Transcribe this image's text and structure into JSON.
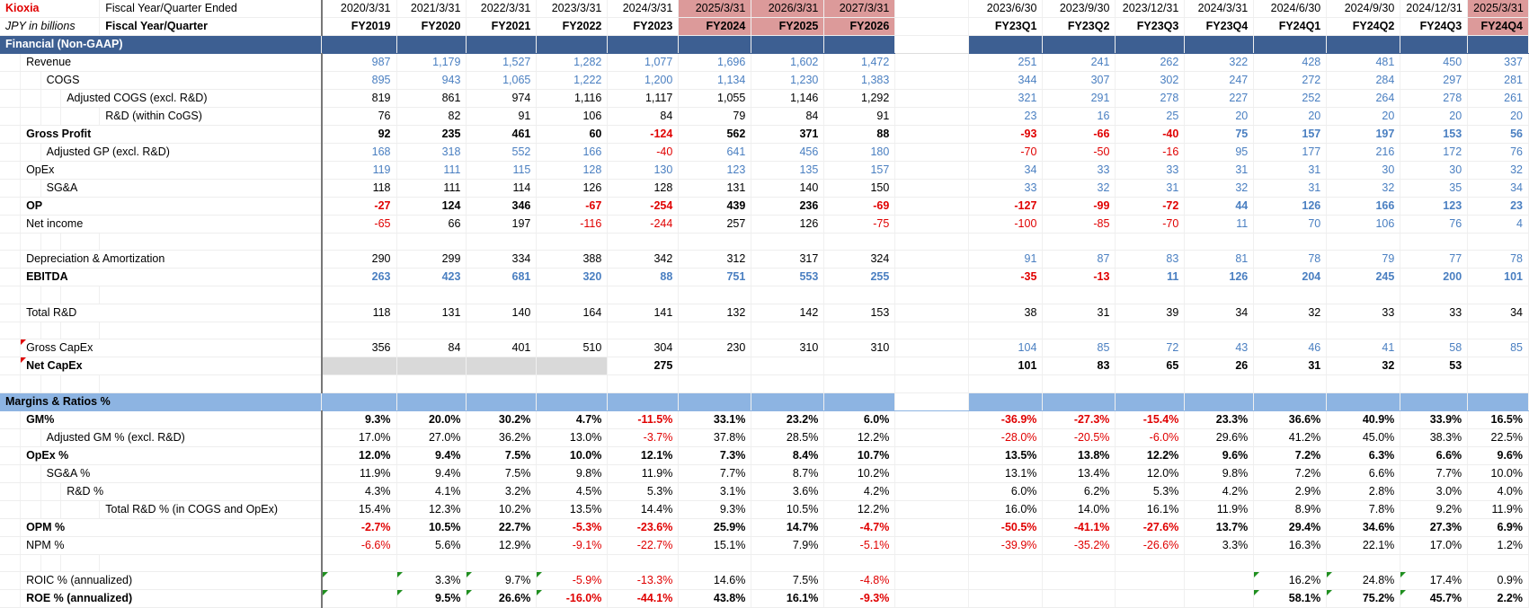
{
  "header": {
    "company": "Kioxia",
    "unit": "JPY in billions",
    "row1_label": "Fiscal Year/Quarter Ended",
    "row2_label": "Fiscal Year/Quarter",
    "annual_dates": [
      "2020/3/31",
      "2021/3/31",
      "2022/3/31",
      "2023/3/31",
      "2024/3/31",
      "2025/3/31",
      "2026/3/31",
      "2027/3/31"
    ],
    "annual_labels": [
      "FY2019",
      "FY2020",
      "FY2021",
      "FY2022",
      "FY2023",
      "FY2024",
      "FY2025",
      "FY2026"
    ],
    "quarter_dates": [
      "2023/6/30",
      "2023/9/30",
      "2023/12/31",
      "2024/3/31",
      "2024/6/30",
      "2024/9/30",
      "2024/12/31",
      "2025/3/31"
    ],
    "quarter_labels": [
      "FY23Q1",
      "FY23Q2",
      "FY23Q3",
      "FY23Q4",
      "FY24Q1",
      "FY24Q2",
      "FY24Q3",
      "FY24Q4"
    ]
  },
  "colors": {
    "section_dark": "#3d5f92",
    "section_light": "#8db4e2",
    "forecast": "#dc9a9a",
    "blue": "#4a7fc1",
    "red": "#e00000"
  },
  "sections": {
    "financial": "Financial (Non-GAAP)",
    "margins": "Margins & Ratios %"
  },
  "rows": [
    {
      "key": "revenue",
      "label": "Revenue",
      "indent": 1,
      "lbold": false,
      "a": [
        "987",
        "1,179",
        "1,527",
        "1,282",
        "1,077",
        "1,696",
        "1,602",
        "1,472"
      ],
      "ac": [
        "blue",
        "blue",
        "blue",
        "blue",
        "blue",
        "blue",
        "blue",
        "blue"
      ],
      "q": [
        "251",
        "241",
        "262",
        "322",
        "428",
        "481",
        "450",
        "337"
      ],
      "qc": [
        "blue",
        "blue",
        "blue",
        "blue",
        "blue",
        "blue",
        "blue",
        "blue"
      ]
    },
    {
      "key": "cogs",
      "label": "COGS",
      "indent": 2,
      "lbold": false,
      "a": [
        "895",
        "943",
        "1,065",
        "1,222",
        "1,200",
        "1,134",
        "1,230",
        "1,383"
      ],
      "ac": [
        "blue",
        "blue",
        "blue",
        "blue",
        "blue",
        "blue",
        "blue",
        "blue"
      ],
      "q": [
        "344",
        "307",
        "302",
        "247",
        "272",
        "284",
        "297",
        "281"
      ],
      "qc": [
        "blue",
        "blue",
        "blue",
        "blue",
        "blue",
        "blue",
        "blue",
        "blue"
      ]
    },
    {
      "key": "adj-cogs",
      "label": "Adjusted COGS (excl. R&D)",
      "indent": 3,
      "lbold": false,
      "a": [
        "819",
        "861",
        "974",
        "1,116",
        "1,117",
        "1,055",
        "1,146",
        "1,292"
      ],
      "ac": [
        "",
        "",
        "",
        "",
        "",
        "",
        "",
        ""
      ],
      "q": [
        "321",
        "291",
        "278",
        "227",
        "252",
        "264",
        "278",
        "261"
      ],
      "qc": [
        "blue",
        "blue",
        "blue",
        "blue",
        "blue",
        "blue",
        "blue",
        "blue"
      ]
    },
    {
      "key": "rnd-cogs",
      "label": "R&D (within CoGS)",
      "indent": 4,
      "lbold": false,
      "a": [
        "76",
        "82",
        "91",
        "106",
        "84",
        "79",
        "84",
        "91"
      ],
      "ac": [
        "",
        "",
        "",
        "",
        "",
        "",
        "",
        ""
      ],
      "q": [
        "23",
        "16",
        "25",
        "20",
        "20",
        "20",
        "20",
        "20"
      ],
      "qc": [
        "blue",
        "blue",
        "blue",
        "blue",
        "blue",
        "blue",
        "blue",
        "blue"
      ]
    },
    {
      "key": "gross-profit",
      "label": "Gross Profit",
      "indent": 1,
      "lbold": true,
      "a": [
        "92",
        "235",
        "461",
        "60",
        "-124",
        "562",
        "371",
        "88"
      ],
      "ac": [
        "bold",
        "bold",
        "bold",
        "bold",
        "bred",
        "bold",
        "bold",
        "bold"
      ],
      "q": [
        "-93",
        "-66",
        "-40",
        "75",
        "157",
        "197",
        "153",
        "56"
      ],
      "qc": [
        "bred",
        "bred",
        "bred",
        "bblue",
        "bblue",
        "bblue",
        "bblue",
        "bblue"
      ]
    },
    {
      "key": "adj-gp",
      "label": "Adjusted GP (excl. R&D)",
      "indent": 2,
      "lbold": false,
      "a": [
        "168",
        "318",
        "552",
        "166",
        "-40",
        "641",
        "456",
        "180"
      ],
      "ac": [
        "blue",
        "blue",
        "blue",
        "blue",
        "red",
        "blue",
        "blue",
        "blue"
      ],
      "q": [
        "-70",
        "-50",
        "-16",
        "95",
        "177",
        "216",
        "172",
        "76"
      ],
      "qc": [
        "red",
        "red",
        "red",
        "blue",
        "blue",
        "blue",
        "blue",
        "blue"
      ]
    },
    {
      "key": "opex",
      "label": "OpEx",
      "indent": 1,
      "lbold": false,
      "a": [
        "119",
        "111",
        "115",
        "128",
        "130",
        "123",
        "135",
        "157"
      ],
      "ac": [
        "blue",
        "blue",
        "blue",
        "blue",
        "blue",
        "blue",
        "blue",
        "blue"
      ],
      "q": [
        "34",
        "33",
        "33",
        "31",
        "31",
        "30",
        "30",
        "32"
      ],
      "qc": [
        "blue",
        "blue",
        "blue",
        "blue",
        "blue",
        "blue",
        "blue",
        "blue"
      ]
    },
    {
      "key": "sga",
      "label": "SG&A",
      "indent": 2,
      "lbold": false,
      "a": [
        "118",
        "111",
        "114",
        "126",
        "128",
        "131",
        "140",
        "150"
      ],
      "ac": [
        "",
        "",
        "",
        "",
        "",
        "",
        "",
        ""
      ],
      "q": [
        "33",
        "32",
        "31",
        "32",
        "31",
        "32",
        "35",
        "34"
      ],
      "qc": [
        "blue",
        "blue",
        "blue",
        "blue",
        "blue",
        "blue",
        "blue",
        "blue"
      ]
    },
    {
      "key": "op",
      "label": "OP",
      "indent": 1,
      "lbold": true,
      "a": [
        "-27",
        "124",
        "346",
        "-67",
        "-254",
        "439",
        "236",
        "-69"
      ],
      "ac": [
        "bred",
        "bold",
        "bold",
        "bred",
        "bred",
        "bold",
        "bold",
        "bred"
      ],
      "q": [
        "-127",
        "-99",
        "-72",
        "44",
        "126",
        "166",
        "123",
        "23"
      ],
      "qc": [
        "bred",
        "bred",
        "bred",
        "bblue",
        "bblue",
        "bblue",
        "bblue",
        "bblue"
      ]
    },
    {
      "key": "net-income",
      "label": "Net income",
      "indent": 1,
      "lbold": false,
      "a": [
        "-65",
        "66",
        "197",
        "-116",
        "-244",
        "257",
        "126",
        "-75"
      ],
      "ac": [
        "red",
        "",
        "",
        "red",
        "red",
        "",
        "",
        "red"
      ],
      "q": [
        "-100",
        "-85",
        "-70",
        "11",
        "70",
        "106",
        "76",
        "4"
      ],
      "qc": [
        "red",
        "red",
        "red",
        "blue",
        "blue",
        "blue",
        "blue",
        "blue"
      ]
    },
    {
      "key": "blank1",
      "blank": true
    },
    {
      "key": "dna",
      "label": "Depreciation & Amortization",
      "indent": 1,
      "lbold": false,
      "a": [
        "290",
        "299",
        "334",
        "388",
        "342",
        "312",
        "317",
        "324"
      ],
      "ac": [
        "",
        "",
        "",
        "",
        "",
        "",
        "",
        ""
      ],
      "q": [
        "91",
        "87",
        "83",
        "81",
        "78",
        "79",
        "77",
        "78"
      ],
      "qc": [
        "blue",
        "blue",
        "blue",
        "blue",
        "blue",
        "blue",
        "blue",
        "blue"
      ]
    },
    {
      "key": "ebitda",
      "label": "EBITDA",
      "indent": 1,
      "lbold": true,
      "a": [
        "263",
        "423",
        "681",
        "320",
        "88",
        "751",
        "553",
        "255"
      ],
      "ac": [
        "bblue",
        "bblue",
        "bblue",
        "bblue",
        "bblue",
        "bblue",
        "bblue",
        "bblue"
      ],
      "q": [
        "-35",
        "-13",
        "11",
        "126",
        "204",
        "245",
        "200",
        "101"
      ],
      "qc": [
        "bred",
        "bred",
        "bblue",
        "bblue",
        "bblue",
        "bblue",
        "bblue",
        "bblue"
      ]
    },
    {
      "key": "blank2",
      "blank": true
    },
    {
      "key": "total-rnd",
      "label": "Total R&D",
      "indent": 1,
      "lbold": false,
      "a": [
        "118",
        "131",
        "140",
        "164",
        "141",
        "132",
        "142",
        "153"
      ],
      "ac": [
        "",
        "",
        "",
        "",
        "",
        "",
        "",
        ""
      ],
      "q": [
        "38",
        "31",
        "39",
        "34",
        "32",
        "33",
        "33",
        "34"
      ],
      "qc": [
        "",
        "",
        "",
        "",
        "",
        "",
        "",
        ""
      ]
    },
    {
      "key": "blank3",
      "blank": true
    },
    {
      "key": "gross-capex",
      "label": "Gross CapEx",
      "indent": 1,
      "lbold": false,
      "ltri": true,
      "a": [
        "356",
        "84",
        "401",
        "510",
        "304",
        "230",
        "310",
        "310"
      ],
      "ac": [
        "",
        "",
        "",
        "",
        "",
        "",
        "",
        ""
      ],
      "q": [
        "104",
        "85",
        "72",
        "43",
        "46",
        "41",
        "58",
        "85"
      ],
      "qc": [
        "blue",
        "blue",
        "blue",
        "blue",
        "blue",
        "blue",
        "blue",
        "blue"
      ]
    },
    {
      "key": "net-capex",
      "label": "Net CapEx",
      "indent": 1,
      "lbold": true,
      "ltri": true,
      "grayA": [
        0,
        1,
        2,
        3
      ],
      "a": [
        "",
        "",
        "",
        "",
        "275",
        "",
        "",
        ""
      ],
      "ac": [
        "",
        "",
        "",
        "",
        "bold",
        "",
        "",
        ""
      ],
      "q": [
        "101",
        "83",
        "65",
        "26",
        "31",
        "32",
        "53",
        ""
      ],
      "qc": [
        "bold",
        "bold",
        "bold",
        "bold",
        "bold",
        "bold",
        "bold",
        ""
      ]
    },
    {
      "key": "blank4",
      "blank": true
    },
    {
      "key": "section-margins",
      "section2": true
    },
    {
      "key": "gm",
      "label": "GM%",
      "indent": 1,
      "lbold": true,
      "a": [
        "9.3%",
        "20.0%",
        "30.2%",
        "4.7%",
        "-11.5%",
        "33.1%",
        "23.2%",
        "6.0%"
      ],
      "ac": [
        "bold",
        "bold",
        "bold",
        "bold",
        "bred",
        "bold",
        "bold",
        "bold"
      ],
      "q": [
        "-36.9%",
        "-27.3%",
        "-15.4%",
        "23.3%",
        "36.6%",
        "40.9%",
        "33.9%",
        "16.5%"
      ],
      "qc": [
        "bred",
        "bred",
        "bred",
        "bold",
        "bold",
        "bold",
        "bold",
        "bold"
      ]
    },
    {
      "key": "adj-gm",
      "label": "Adjusted GM % (excl. R&D)",
      "indent": 2,
      "lbold": false,
      "a": [
        "17.0%",
        "27.0%",
        "36.2%",
        "13.0%",
        "-3.7%",
        "37.8%",
        "28.5%",
        "12.2%"
      ],
      "ac": [
        "",
        "",
        "",
        "",
        "red",
        "",
        "",
        ""
      ],
      "q": [
        "-28.0%",
        "-20.5%",
        "-6.0%",
        "29.6%",
        "41.2%",
        "45.0%",
        "38.3%",
        "22.5%"
      ],
      "qc": [
        "red",
        "red",
        "red",
        "",
        "",
        "",
        "",
        ""
      ]
    },
    {
      "key": "opex-pct",
      "label": "OpEx %",
      "indent": 1,
      "lbold": true,
      "a": [
        "12.0%",
        "9.4%",
        "7.5%",
        "10.0%",
        "12.1%",
        "7.3%",
        "8.4%",
        "10.7%"
      ],
      "ac": [
        "bold",
        "bold",
        "bold",
        "bold",
        "bold",
        "bold",
        "bold",
        "bold"
      ],
      "q": [
        "13.5%",
        "13.8%",
        "12.2%",
        "9.6%",
        "7.2%",
        "6.3%",
        "6.6%",
        "9.6%"
      ],
      "qc": [
        "bold",
        "bold",
        "bold",
        "bold",
        "bold",
        "bold",
        "bold",
        "bold"
      ]
    },
    {
      "key": "sga-pct",
      "label": "SG&A %",
      "indent": 2,
      "lbold": false,
      "a": [
        "11.9%",
        "9.4%",
        "7.5%",
        "9.8%",
        "11.9%",
        "7.7%",
        "8.7%",
        "10.2%"
      ],
      "ac": [
        "",
        "",
        "",
        "",
        "",
        "",
        "",
        ""
      ],
      "q": [
        "13.1%",
        "13.4%",
        "12.0%",
        "9.8%",
        "7.2%",
        "6.6%",
        "7.7%",
        "10.0%"
      ],
      "qc": [
        "",
        "",
        "",
        "",
        "",
        "",
        "",
        ""
      ]
    },
    {
      "key": "rnd-pct",
      "label": "R&D %",
      "indent": 3,
      "lbold": false,
      "a": [
        "4.3%",
        "4.1%",
        "3.2%",
        "4.5%",
        "5.3%",
        "3.1%",
        "3.6%",
        "4.2%"
      ],
      "ac": [
        "",
        "",
        "",
        "",
        "",
        "",
        "",
        ""
      ],
      "q": [
        "6.0%",
        "6.2%",
        "5.3%",
        "4.2%",
        "2.9%",
        "2.8%",
        "3.0%",
        "4.0%"
      ],
      "qc": [
        "",
        "",
        "",
        "",
        "",
        "",
        "",
        ""
      ]
    },
    {
      "key": "total-rnd-pct",
      "label": "Total R&D % (in COGS and OpEx)",
      "indent": 4,
      "lbold": false,
      "a": [
        "15.4%",
        "12.3%",
        "10.2%",
        "13.5%",
        "14.4%",
        "9.3%",
        "10.5%",
        "12.2%"
      ],
      "ac": [
        "",
        "",
        "",
        "",
        "",
        "",
        "",
        ""
      ],
      "q": [
        "16.0%",
        "14.0%",
        "16.1%",
        "11.9%",
        "8.9%",
        "7.8%",
        "9.2%",
        "11.9%"
      ],
      "qc": [
        "",
        "",
        "",
        "",
        "",
        "",
        "",
        ""
      ]
    },
    {
      "key": "opm",
      "label": "OPM %",
      "indent": 1,
      "lbold": true,
      "a": [
        "-2.7%",
        "10.5%",
        "22.7%",
        "-5.3%",
        "-23.6%",
        "25.9%",
        "14.7%",
        "-4.7%"
      ],
      "ac": [
        "bred",
        "bold",
        "bold",
        "bred",
        "bred",
        "bold",
        "bold",
        "bred"
      ],
      "q": [
        "-50.5%",
        "-41.1%",
        "-27.6%",
        "13.7%",
        "29.4%",
        "34.6%",
        "27.3%",
        "6.9%"
      ],
      "qc": [
        "bred",
        "bred",
        "bred",
        "bold",
        "bold",
        "bold",
        "bold",
        "bold"
      ]
    },
    {
      "key": "npm",
      "label": "NPM %",
      "indent": 1,
      "lbold": false,
      "a": [
        "-6.6%",
        "5.6%",
        "12.9%",
        "-9.1%",
        "-22.7%",
        "15.1%",
        "7.9%",
        "-5.1%"
      ],
      "ac": [
        "red",
        "",
        "",
        "red",
        "red",
        "",
        "",
        "red"
      ],
      "q": [
        "-39.9%",
        "-35.2%",
        "-26.6%",
        "3.3%",
        "16.3%",
        "22.1%",
        "17.0%",
        "1.2%"
      ],
      "qc": [
        "red",
        "red",
        "red",
        "",
        "",
        "",
        "",
        ""
      ]
    },
    {
      "key": "blank5",
      "blank": true
    },
    {
      "key": "roic",
      "label": "ROIC % (annualized)",
      "indent": 1,
      "lbold": false,
      "triA": [
        0,
        1,
        2,
        3
      ],
      "triQ": [
        4,
        5,
        6
      ],
      "a": [
        "",
        "3.3%",
        "9.7%",
        "-5.9%",
        "-13.3%",
        "14.6%",
        "7.5%",
        "-4.8%"
      ],
      "ac": [
        "",
        "",
        "",
        "red",
        "red",
        "",
        "",
        "red"
      ],
      "q": [
        "",
        "",
        "",
        "",
        "16.2%",
        "24.8%",
        "17.4%",
        "0.9%"
      ],
      "qc": [
        "",
        "",
        "",
        "",
        "",
        "",
        "",
        ""
      ]
    },
    {
      "key": "roe",
      "label": "ROE % (annualized)",
      "indent": 1,
      "lbold": true,
      "triA": [
        0,
        1,
        2,
        3
      ],
      "triQ": [
        4,
        5,
        6
      ],
      "a": [
        "",
        "9.5%",
        "26.6%",
        "-16.0%",
        "-44.1%",
        "43.8%",
        "16.1%",
        "-9.3%"
      ],
      "ac": [
        "",
        "bold",
        "bold",
        "bred",
        "bred",
        "bold",
        "bold",
        "bred"
      ],
      "q": [
        "",
        "",
        "",
        "",
        "58.1%",
        "75.2%",
        "45.7%",
        "2.2%"
      ],
      "qc": [
        "",
        "",
        "",
        "",
        "bold",
        "bold",
        "bold",
        "bold"
      ]
    }
  ]
}
